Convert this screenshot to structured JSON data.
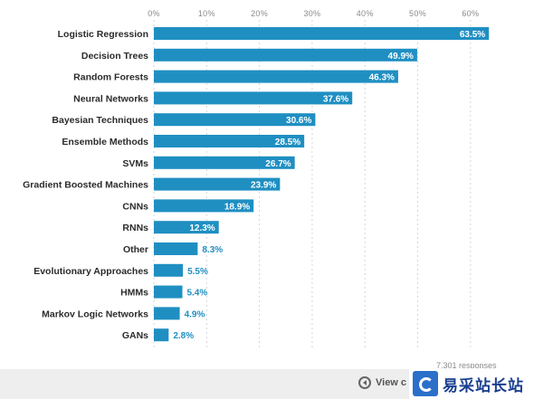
{
  "chart_data": {
    "type": "bar",
    "orientation": "horizontal",
    "title": "",
    "xlabel": "",
    "ylabel": "",
    "xlim": [
      0,
      64
    ],
    "ticks": [
      0,
      10,
      20,
      30,
      40,
      50,
      60
    ],
    "tick_labels": [
      "0%",
      "10%",
      "20%",
      "30%",
      "40%",
      "50%",
      "60%"
    ],
    "grid": true,
    "bar_color": "#1f8fc2",
    "categories": [
      "Logistic Regression",
      "Decision Trees",
      "Random Forests",
      "Neural Networks",
      "Bayesian Techniques",
      "Ensemble Methods",
      "SVMs",
      "Gradient Boosted Machines",
      "CNNs",
      "RNNs",
      "Other",
      "Evolutionary Approaches",
      "HMMs",
      "Markov Logic Networks",
      "GANs"
    ],
    "values": [
      63.5,
      49.9,
      46.3,
      37.6,
      30.6,
      28.5,
      26.7,
      23.9,
      18.9,
      12.3,
      8.3,
      5.5,
      5.4,
      4.9,
      2.8
    ],
    "value_labels": [
      "63.5%",
      "49.9%",
      "46.3%",
      "37.6%",
      "30.6%",
      "28.5%",
      "26.7%",
      "23.9%",
      "18.9%",
      "12.3%",
      "8.3%",
      "5.5%",
      "5.4%",
      "4.9%",
      "2.8%"
    ]
  },
  "footer": {
    "responses": "7,301 responses",
    "view_button_label": "View c"
  },
  "watermark": {
    "text": "易采站长站"
  }
}
